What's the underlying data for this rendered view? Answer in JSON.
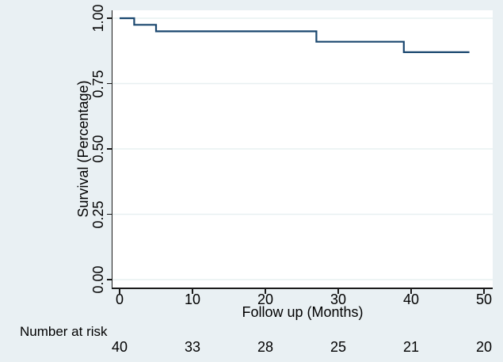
{
  "figure": {
    "bg_color": "#e9f0f3",
    "plot_bg_color": "#ffffff",
    "grid_color": "#e7f0f1",
    "axis_color": "#1a1a1a",
    "text_color": "#000000",
    "line_color": "#1a476f"
  },
  "y_axis": {
    "title": "Survival (Percentage)",
    "tick_labels": [
      "1.00",
      "0.75",
      "0.50",
      "0.25",
      "0.00"
    ],
    "tick_values": [
      1.0,
      0.75,
      0.5,
      0.25,
      0.0
    ]
  },
  "x_axis": {
    "title": "Follow up (Months)",
    "tick_labels": [
      "0",
      "10",
      "20",
      "30",
      "40",
      "50"
    ],
    "tick_values": [
      0,
      10,
      20,
      30,
      40,
      50
    ]
  },
  "risk_table": {
    "label": "Number at risk",
    "counts": [
      "40",
      "33",
      "28",
      "25",
      "21",
      "20"
    ]
  },
  "chart_data": {
    "type": "line",
    "subtype": "kaplan-meier-step-curve",
    "title": "",
    "xlabel": "Follow up (Months)",
    "ylabel": "Survival (Percentage)",
    "xlim": [
      -1,
      51.5
    ],
    "ylim": [
      -0.03,
      1.04
    ],
    "x_ticks": [
      0,
      10,
      20,
      30,
      40,
      50
    ],
    "y_ticks": [
      0.0,
      0.25,
      0.5,
      0.75,
      1.0
    ],
    "grid": "horizontal-only",
    "legend": "none",
    "series": [
      {
        "name": "survival-estimate",
        "color": "#1a476f",
        "step": true,
        "x": [
          0,
          2,
          2,
          5,
          5,
          27,
          27,
          39,
          39,
          48
        ],
        "y": [
          1.0,
          1.0,
          0.975,
          0.975,
          0.95,
          0.95,
          0.91,
          0.91,
          0.87,
          0.87
        ]
      }
    ],
    "number_at_risk": {
      "label": "Number at risk",
      "times": [
        0,
        10,
        20,
        30,
        40,
        50
      ],
      "counts": [
        40,
        33,
        28,
        25,
        21,
        20
      ]
    }
  }
}
